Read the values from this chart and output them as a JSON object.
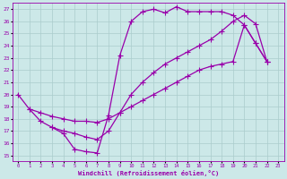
{
  "bg_color": "#cce8e8",
  "grid_color": "#aacccc",
  "line_color": "#9900aa",
  "marker": "+",
  "markersize": 4,
  "markeredgewidth": 0.8,
  "linewidth": 0.9,
  "xlabel": "Windchill (Refroidissement éolien,°C)",
  "ylabel_ticks": [
    15,
    16,
    17,
    18,
    19,
    20,
    21,
    22,
    23,
    24,
    25,
    26,
    27
  ],
  "xlabel_ticks": [
    0,
    1,
    2,
    3,
    4,
    5,
    6,
    7,
    8,
    9,
    10,
    11,
    12,
    13,
    14,
    15,
    16,
    17,
    18,
    19,
    20,
    21,
    22,
    23
  ],
  "xlim": [
    -0.5,
    23.5
  ],
  "ylim": [
    14.5,
    27.5
  ],
  "line1_x": [
    0,
    1,
    2,
    3,
    4,
    5,
    6,
    7,
    8,
    9,
    10,
    11,
    12,
    13,
    14,
    15,
    16,
    17,
    18,
    19,
    20,
    21,
    22
  ],
  "line1_y": [
    20.0,
    18.8,
    17.8,
    17.3,
    16.8,
    15.5,
    15.3,
    15.2,
    18.3,
    23.2,
    26.0,
    26.8,
    27.0,
    26.7,
    27.2,
    26.8,
    26.8,
    26.8,
    26.8,
    26.5,
    25.7,
    24.2,
    22.7
  ],
  "line2_x": [
    1,
    2,
    3,
    4,
    5,
    6,
    7,
    8,
    9,
    10,
    11,
    12,
    13,
    14,
    15,
    16,
    17,
    18,
    19,
    20,
    21,
    22
  ],
  "line2_y": [
    18.8,
    18.5,
    18.2,
    18.0,
    17.8,
    17.8,
    17.7,
    18.0,
    18.5,
    19.0,
    19.5,
    20.0,
    20.5,
    21.0,
    21.5,
    22.0,
    22.3,
    22.5,
    22.7,
    25.7,
    24.2,
    22.7
  ],
  "line3_x": [
    3,
    4,
    5,
    6,
    7,
    8,
    9,
    10,
    11,
    12,
    13,
    14,
    15,
    16,
    17,
    18,
    19,
    20,
    21,
    22
  ],
  "line3_y": [
    17.3,
    17.0,
    16.8,
    16.5,
    16.3,
    17.0,
    18.5,
    20.0,
    21.0,
    21.8,
    22.5,
    23.0,
    23.5,
    24.0,
    24.5,
    25.2,
    26.0,
    26.5,
    25.8,
    22.7
  ]
}
